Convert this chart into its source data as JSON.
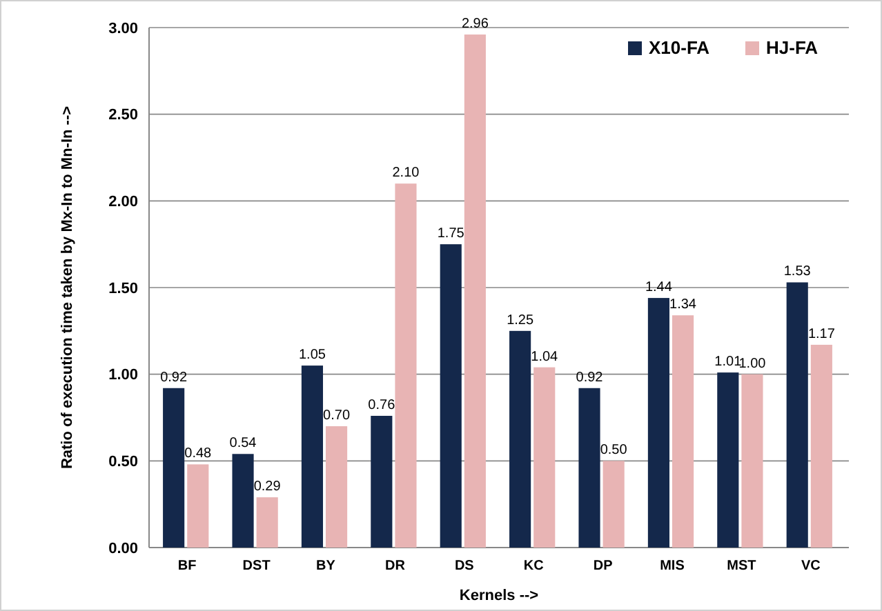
{
  "chart_data": {
    "type": "bar",
    "xlabel": "Kernels -->",
    "ylabel": "Ratio of execution time taken by Mx-In to Mn-In -->",
    "categories": [
      "BF",
      "DST",
      "BY",
      "DR",
      "DS",
      "KC",
      "DP",
      "MIS",
      "MST",
      "VC"
    ],
    "series": [
      {
        "name": "X10-FA",
        "color": "#14284b",
        "values": [
          0.92,
          0.54,
          1.05,
          0.76,
          1.75,
          1.25,
          0.92,
          1.44,
          1.01,
          1.53
        ],
        "value_labels": [
          "0.92",
          "0.54",
          "1.05",
          "0.76",
          "1.75",
          "1.25",
          "0.92",
          "1.44",
          "1.01",
          "1.53"
        ]
      },
      {
        "name": "HJ-FA",
        "color": "#e8b4b4",
        "values": [
          0.48,
          0.29,
          0.7,
          2.1,
          2.96,
          1.04,
          0.5,
          1.34,
          1.0,
          1.17
        ],
        "value_labels": [
          "0.48",
          "0.29",
          "0.70",
          "2.10",
          "2.96",
          "1.04",
          "0.50",
          "1.34",
          "1.00",
          "1.17"
        ]
      }
    ],
    "ylim": [
      0,
      3
    ],
    "yticks": [
      {
        "value": 0,
        "label": "0.00"
      },
      {
        "value": 0.5,
        "label": "0.50"
      },
      {
        "value": 1,
        "label": "1.00"
      },
      {
        "value": 1.5,
        "label": "1.50"
      },
      {
        "value": 2,
        "label": "2.00"
      },
      {
        "value": 2.5,
        "label": "2.50"
      },
      {
        "value": 3,
        "label": "3.00"
      }
    ],
    "grid": "y",
    "legend": "top right"
  }
}
